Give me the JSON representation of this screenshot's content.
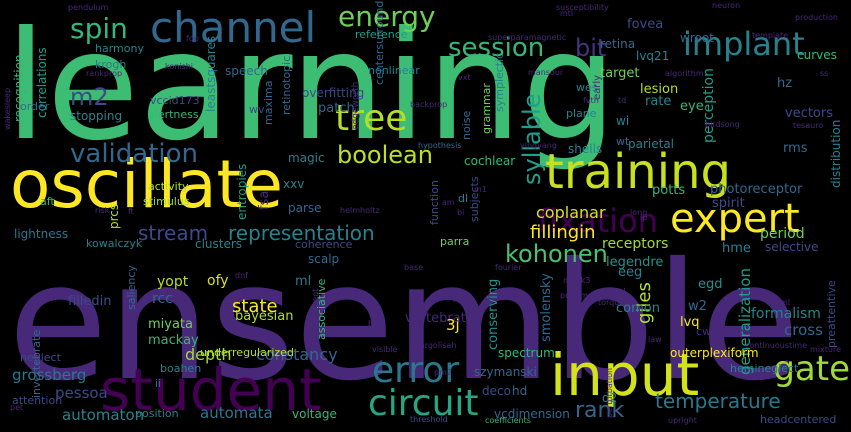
{
  "palette": {
    "yellow": "#fde725",
    "lime": "#b5de2b",
    "green": "#6ece58",
    "seagreen": "#35b779",
    "teal": "#1f9e89",
    "cyan": "#26828e",
    "blue": "#31688e",
    "indigo": "#3e4989",
    "purple": "#482878",
    "violet": "#440154"
  },
  "words": [
    {
      "text": "learning",
      "color": "#3dbc74"
    },
    {
      "text": "ensemble",
      "color": "#482878"
    },
    {
      "text": "oscillate",
      "color": "#fde725"
    },
    {
      "text": "student",
      "color": "#440154"
    },
    {
      "text": "input",
      "color": "#d2e21b"
    },
    {
      "text": "training",
      "color": "#c8e020"
    },
    {
      "text": "channel",
      "color": "#31688e"
    },
    {
      "text": "error",
      "color": "#2a788e"
    },
    {
      "text": "circuit",
      "color": "#22a884"
    },
    {
      "text": "expert",
      "color": "#fde725"
    },
    {
      "text": "energy",
      "color": "#6ece58"
    },
    {
      "text": "spin",
      "color": "#35b779"
    },
    {
      "text": "implant",
      "color": "#26828e"
    },
    {
      "text": "session",
      "color": "#35b779"
    },
    {
      "text": "tree",
      "color": "#b5de2b"
    },
    {
      "text": "validation",
      "color": "#31688e"
    },
    {
      "text": "fixation",
      "color": "#440154"
    },
    {
      "text": "gate",
      "color": "#a0da39"
    },
    {
      "text": "boolean",
      "color": "#bddf26"
    },
    {
      "text": "kohonen",
      "color": "#4ac16d"
    },
    {
      "text": "m2",
      "color": "#3e4989"
    },
    {
      "text": "bit",
      "color": "#46327e"
    },
    {
      "text": "syllable",
      "color": "#1f9e89"
    },
    {
      "text": "temperature",
      "color": "#2a788e"
    },
    {
      "text": "rank",
      "color": "#31688e"
    },
    {
      "text": "representation",
      "color": "#26828e"
    },
    {
      "text": "stream",
      "color": "#3e4989"
    },
    {
      "text": "state",
      "color": "#fde725"
    },
    {
      "text": "automaton",
      "color": "#26828e"
    },
    {
      "text": "automata",
      "color": "#2a788e"
    },
    {
      "text": "constancy",
      "color": "#31688e"
    },
    {
      "text": "depth",
      "color": "#a0da39"
    },
    {
      "text": "grossberg",
      "color": "#2a788e"
    },
    {
      "text": "pessoa",
      "color": "#3e4989"
    },
    {
      "text": "spectrum",
      "color": "#35b779"
    },
    {
      "text": "szymanski",
      "color": "#31688e"
    },
    {
      "text": "giles",
      "color": "#b5de2b"
    },
    {
      "text": "generalization",
      "color": "#1f9e89"
    },
    {
      "text": "period",
      "color": "#6ece58"
    },
    {
      "text": "cross",
      "color": "#31688e"
    },
    {
      "text": "formalism",
      "color": "#26828e"
    },
    {
      "text": "fillingin",
      "color": "#fde725"
    },
    {
      "text": "coplanar",
      "color": "#d8e219"
    },
    {
      "text": "receptors",
      "color": "#a0da39"
    },
    {
      "text": "smolensky",
      "color": "#31688e"
    },
    {
      "text": "conserving",
      "color": "#21918c"
    },
    {
      "text": "vertebrate",
      "color": "#482878"
    },
    {
      "text": "bayesian",
      "color": "#b5de2b"
    },
    {
      "text": "miyata",
      "color": "#6ece58"
    },
    {
      "text": "mackay",
      "color": "#35b779"
    },
    {
      "text": "filledin",
      "color": "#3e4989"
    },
    {
      "text": "rcc",
      "color": "#31688e"
    },
    {
      "text": "ofy",
      "color": "#d8e219"
    },
    {
      "text": "yopt",
      "color": "#b5de2b"
    },
    {
      "text": "ml",
      "color": "#2a788e"
    },
    {
      "text": "3j",
      "color": "#fde725"
    },
    {
      "text": "lvq",
      "color": "#fde725"
    },
    {
      "text": "w2",
      "color": "#31688e"
    },
    {
      "text": "comon",
      "color": "#26828e"
    },
    {
      "text": "eeg",
      "color": "#26828e"
    },
    {
      "text": "egd",
      "color": "#21918c"
    },
    {
      "text": "hme",
      "color": "#26828e"
    },
    {
      "text": "legendre",
      "color": "#21918c"
    },
    {
      "text": "selective",
      "color": "#3e4989"
    },
    {
      "text": "potts",
      "color": "#35b779"
    },
    {
      "text": "photoreceptor",
      "color": "#31688e"
    },
    {
      "text": "spirit",
      "color": "#3e4989"
    },
    {
      "text": "parietal",
      "color": "#26828e"
    },
    {
      "text": "rms",
      "color": "#31688e"
    },
    {
      "text": "vectors",
      "color": "#3e4989"
    },
    {
      "text": "distribution",
      "color": "#26828e"
    },
    {
      "text": "perception",
      "color": "#1f9e89"
    },
    {
      "text": "lesion",
      "color": "#b5de2b"
    },
    {
      "text": "rate",
      "color": "#26828e"
    },
    {
      "text": "eye",
      "color": "#35b779"
    },
    {
      "text": "wi",
      "color": "#26828e"
    },
    {
      "text": "hz",
      "color": "#31688e"
    },
    {
      "text": "target",
      "color": "#6ece58"
    },
    {
      "text": "retina",
      "color": "#31688e"
    },
    {
      "text": "fovea",
      "color": "#3e4989"
    },
    {
      "text": "wroot",
      "color": "#31688e"
    },
    {
      "text": "lvq21",
      "color": "#26828e"
    },
    {
      "text": "curves",
      "color": "#35b779"
    },
    {
      "text": "harmony",
      "color": "#26828e"
    },
    {
      "text": "krogh",
      "color": "#2a788e"
    },
    {
      "text": "speech",
      "color": "#31688e"
    },
    {
      "text": "recognition",
      "color": "#35b779"
    },
    {
      "text": "correlations",
      "color": "#1f9e89"
    },
    {
      "text": "invertebrate",
      "color": "#31688e"
    },
    {
      "text": "order",
      "color": "#31688e"
    },
    {
      "text": "stopping",
      "color": "#26828e"
    },
    {
      "text": "alertness",
      "color": "#35b779"
    },
    {
      "text": "vccid173",
      "color": "#3e4989"
    },
    {
      "text": "leastsquares",
      "color": "#26828e"
    },
    {
      "text": "wv",
      "color": "#3e4989"
    },
    {
      "text": "maxima",
      "color": "#31688e"
    },
    {
      "text": "overfitting",
      "color": "#3e4989"
    },
    {
      "text": "patch",
      "color": "#31688e"
    },
    {
      "text": "retinotopic",
      "color": "#31688e"
    },
    {
      "text": "nonlinear",
      "color": "#26828e"
    },
    {
      "text": "centersurround",
      "color": "#31688e"
    },
    {
      "text": "reference",
      "color": "#1f9e89"
    },
    {
      "text": "noise",
      "color": "#31688e"
    },
    {
      "text": "symplectic",
      "color": "#26828e"
    },
    {
      "text": "grammar",
      "color": "#6ece58"
    },
    {
      "text": "wes",
      "color": "#26828e"
    },
    {
      "text": "plane",
      "color": "#26828e"
    },
    {
      "text": "wt",
      "color": "#31688e"
    },
    {
      "text": "shells",
      "color": "#26828e"
    },
    {
      "text": "cochlear",
      "color": "#35b779"
    },
    {
      "text": "magic",
      "color": "#26828e"
    },
    {
      "text": "xxv",
      "color": "#26828e"
    },
    {
      "text": "fsa",
      "color": "#482878"
    },
    {
      "text": "entropies",
      "color": "#1f9e89"
    },
    {
      "text": "activity",
      "color": "#b5de2b"
    },
    {
      "text": "stimulus",
      "color": "#a0da39"
    },
    {
      "text": "aft",
      "color": "#35b779"
    },
    {
      "text": "lightness",
      "color": "#2a788e"
    },
    {
      "text": "kowalczyk",
      "color": "#26828e"
    },
    {
      "text": "prcs",
      "color": "#b5de2b"
    },
    {
      "text": "clusters",
      "color": "#26828e"
    },
    {
      "text": "parse",
      "color": "#31688e"
    },
    {
      "text": "function",
      "color": "#3e4989"
    },
    {
      "text": "subjects",
      "color": "#3e4989"
    },
    {
      "text": "dl",
      "color": "#26828e"
    },
    {
      "text": "parra",
      "color": "#6ece58"
    },
    {
      "text": "coherence",
      "color": "#3e4989"
    },
    {
      "text": "scalp",
      "color": "#31688e"
    },
    {
      "text": "saliency",
      "color": "#31688e"
    },
    {
      "text": "associative",
      "color": "#35b779"
    },
    {
      "text": "boahen",
      "color": "#26828e"
    },
    {
      "text": "underregularized",
      "color": "#b5de2b"
    },
    {
      "text": "neglect",
      "color": "#3e4989"
    },
    {
      "text": "attention",
      "color": "#3e4989"
    },
    {
      "text": "position",
      "color": "#26828e"
    },
    {
      "text": "voltage",
      "color": "#35b779"
    },
    {
      "text": "deco",
      "color": "#3e4989"
    },
    {
      "text": "hd",
      "color": "#31688e"
    },
    {
      "text": "vcdimension",
      "color": "#31688e"
    },
    {
      "text": "d2",
      "color": "#26828e"
    },
    {
      "text": "outerplexiform",
      "color": "#fde725"
    },
    {
      "text": "hemineglect",
      "color": "#26828e"
    },
    {
      "text": "headcentered",
      "color": "#3e4989"
    },
    {
      "text": "preattentive",
      "color": "#3e4989"
    },
    {
      "text": "ii",
      "color": "#31688e"
    },
    {
      "text": "hypothesis",
      "color": "#31688e"
    },
    {
      "text": "threshold",
      "color": "#3e4989"
    },
    {
      "text": "coefficients",
      "color": "#35b779"
    },
    {
      "text": "upright",
      "color": "#482878"
    },
    {
      "text": "mixture",
      "color": "#482878"
    },
    {
      "text": "continuoustime",
      "color": "#482878"
    },
    {
      "text": "pendulum",
      "color": "#482878"
    },
    {
      "text": "susceptibility",
      "color": "#482878"
    },
    {
      "text": "neuron",
      "color": "#482878"
    },
    {
      "text": "production",
      "color": "#482878"
    },
    {
      "text": "template",
      "color": "#482878"
    },
    {
      "text": "superparamagnetic",
      "color": "#482878"
    },
    {
      "text": "rankprop",
      "color": "#482878"
    },
    {
      "text": "konishi",
      "color": "#482878"
    },
    {
      "text": "mansour",
      "color": "#482878"
    },
    {
      "text": "algorithm",
      "color": "#482878"
    },
    {
      "text": "fop",
      "color": "#482878"
    },
    {
      "text": "vxt",
      "color": "#482878"
    },
    {
      "text": "backprop",
      "color": "#482878"
    },
    {
      "text": "birdsong",
      "color": "#482878"
    },
    {
      "text": "wakesleep",
      "color": "#482878"
    },
    {
      "text": "tesauro",
      "color": "#482878"
    },
    {
      "text": "mtl",
      "color": "#482878"
    },
    {
      "text": "edgeworth",
      "color": "#482878"
    },
    {
      "text": "helmholtz",
      "color": "#482878"
    },
    {
      "text": "risk",
      "color": "#482878"
    },
    {
      "text": "monk3",
      "color": "#482878"
    },
    {
      "text": "base",
      "color": "#482878"
    },
    {
      "text": "control",
      "color": "#482878"
    },
    {
      "text": "torque",
      "color": "#482878"
    },
    {
      "text": "pneumonia",
      "color": "#482878"
    },
    {
      "text": "reinforcement",
      "color": "#482878"
    },
    {
      "text": "mf",
      "color": "#482878"
    },
    {
      "text": "hex",
      "color": "#482878"
    },
    {
      "text": "visible",
      "color": "#482878"
    },
    {
      "text": "margolisah",
      "color": "#482878"
    },
    {
      "text": "gzip",
      "color": "#482878"
    },
    {
      "text": "fourier",
      "color": "#482878"
    },
    {
      "text": "law",
      "color": "#482878"
    },
    {
      "text": "pm2",
      "color": "#482878"
    },
    {
      "text": "pml",
      "color": "#482878"
    },
    {
      "text": "dnf",
      "color": "#482878"
    },
    {
      "text": "pet",
      "color": "#482878"
    },
    {
      "text": "early",
      "color": "#482878"
    },
    {
      "text": "fvtn",
      "color": "#482878"
    },
    {
      "text": "ss",
      "color": "#482878"
    },
    {
      "text": "td",
      "color": "#482878"
    },
    {
      "text": "yingyang",
      "color": "#482878"
    },
    {
      "text": "long",
      "color": "#482878"
    },
    {
      "text": "ft",
      "color": "#482878"
    },
    {
      "text": "cwm",
      "color": "#482878"
    },
    {
      "text": "ip",
      "color": "#482878"
    },
    {
      "text": "am",
      "color": "#482878"
    },
    {
      "text": "bi",
      "color": "#482878"
    },
    {
      "text": "m1",
      "color": "#482878"
    },
    {
      "text": "perturbation",
      "color": "#482878"
    }
  ]
}
